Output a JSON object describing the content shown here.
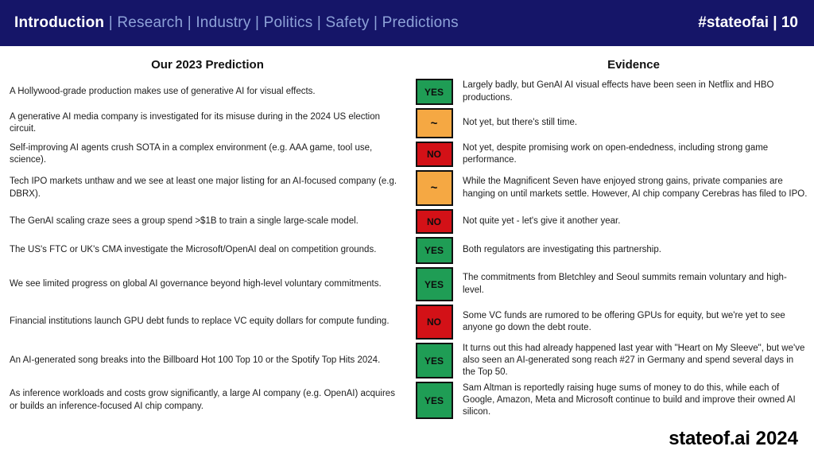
{
  "header": {
    "nav_items": [
      {
        "label": "Introduction",
        "active": true
      },
      {
        "label": "Research",
        "active": false
      },
      {
        "label": "Industry",
        "active": false
      },
      {
        "label": "Politics",
        "active": false
      },
      {
        "label": "Safety",
        "active": false
      },
      {
        "label": "Predictions",
        "active": false
      }
    ],
    "separator": "|",
    "hashtag": "#stateofai | 10"
  },
  "table": {
    "prediction_header": "Our 2023 Prediction",
    "evidence_header": "Evidence",
    "rows": [
      {
        "prediction": "A Hollywood-grade production makes use of generative AI for visual effects.",
        "status": "YES",
        "verdict": "yes",
        "evidence": "Largely badly, but GenAI AI visual effects have been seen in Netflix and HBO productions."
      },
      {
        "prediction": "A generative AI media company is investigated for its misuse during in the 2024 US election circuit.",
        "status": "~",
        "verdict": "partial",
        "evidence": "Not yet, but there's still time."
      },
      {
        "prediction": "Self-improving AI agents crush SOTA in a complex environment (e.g. AAA game, tool use, science).",
        "status": "NO",
        "verdict": "no",
        "evidence": "Not yet, despite promising work on open-endedness, including strong game performance."
      },
      {
        "prediction": "Tech IPO markets unthaw and we see at least one major listing for an AI-focused company (e.g. DBRX).",
        "status": "~",
        "verdict": "partial",
        "evidence": "While the Magnificent Seven have enjoyed strong gains, private companies are hanging on until markets settle. However, AI chip company Cerebras has filed to IPO."
      },
      {
        "prediction": "The GenAI scaling craze sees a group spend >$1B to train a single large-scale model.",
        "status": "NO",
        "verdict": "no",
        "evidence": "Not quite yet - let's give it another year."
      },
      {
        "prediction": "The US's FTC or UK's CMA investigate the Microsoft/OpenAI deal on competition grounds.",
        "status": "YES",
        "verdict": "yes",
        "evidence": "Both regulators are investigating this partnership."
      },
      {
        "prediction": "We see limited progress on global AI governance beyond high-level voluntary commitments.",
        "status": "YES",
        "verdict": "yes",
        "evidence": "The commitments from Bletchley and Seoul summits remain voluntary and high-level."
      },
      {
        "prediction": "Financial institutions launch GPU debt funds to replace VC equity dollars for compute funding.",
        "status": "NO",
        "verdict": "no",
        "evidence": "Some VC funds are rumored to be offering GPUs for equity, but we're yet to see anyone go down the debt route."
      },
      {
        "prediction": "An AI-generated song breaks into the Billboard Hot 100 Top 10 or the Spotify Top Hits 2024.",
        "status": "YES",
        "verdict": "yes",
        "evidence": "It turns out this had already happened last year with \"Heart on My Sleeve\", but we've also seen an AI-generated song reach #27 in Germany and spend several days in the Top 50."
      },
      {
        "prediction": "As inference workloads and costs grow significantly, a large AI company (e.g. OpenAI) acquires or builds an inference-focused AI chip company.",
        "status": "YES",
        "verdict": "yes",
        "evidence": "Sam Altman is reportedly raising huge sums of money to do this, while each of Google, Amazon, Meta and Microsoft continue to build and improve their owned AI silicon."
      }
    ]
  },
  "footer": {
    "brand": "stateof.ai",
    "year": "2024"
  },
  "colors": {
    "yes": "#1f9d55",
    "partial": "#f5a843",
    "no": "#d31117",
    "header_bg": "#151568",
    "nav_inactive": "#8ea2d8"
  }
}
